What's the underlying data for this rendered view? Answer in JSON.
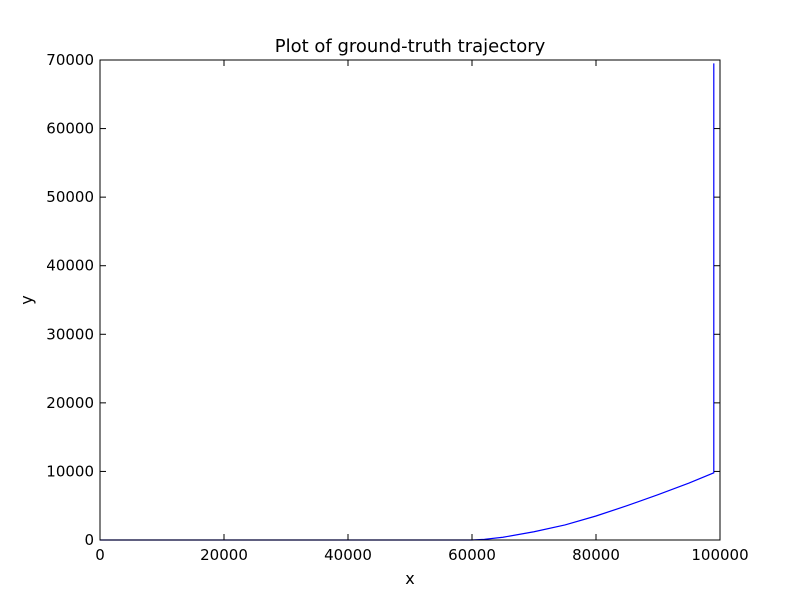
{
  "chart_data": {
    "type": "line",
    "title": "Plot of ground-truth trajectory",
    "xlabel": "x",
    "ylabel": "y",
    "xlim": [
      0,
      100000
    ],
    "ylim": [
      0,
      70000
    ],
    "xticks": [
      "0",
      "20000",
      "40000",
      "60000",
      "80000",
      "100000"
    ],
    "yticks": [
      "0",
      "10000",
      "20000",
      "30000",
      "40000",
      "50000",
      "60000",
      "70000"
    ],
    "grid": false,
    "colors": {
      "line": "#0000ff",
      "axes": "#000000"
    },
    "series": [
      {
        "x": [
          0,
          10000,
          20000,
          30000,
          40000,
          50000,
          60000,
          62000,
          65000,
          70000,
          75000,
          80000,
          85000,
          90000,
          95000,
          99000,
          99000
        ],
        "y": [
          0,
          0,
          0,
          0,
          0,
          0,
          0,
          100,
          400,
          1200,
          2200,
          3500,
          5000,
          6600,
          8300,
          9800,
          69500
        ]
      }
    ]
  }
}
